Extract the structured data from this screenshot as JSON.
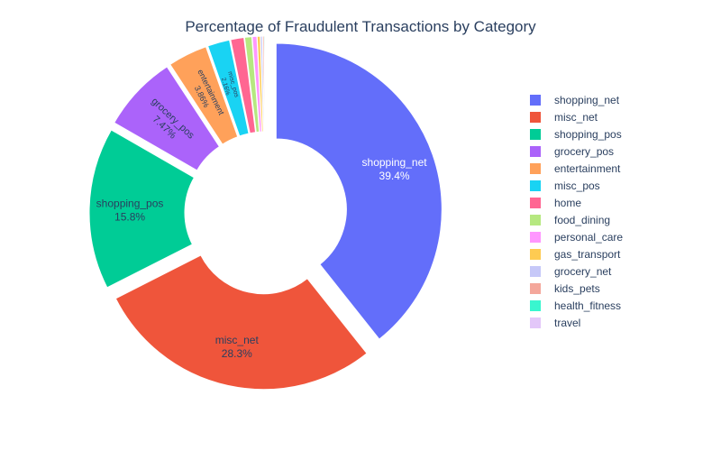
{
  "chart_data": {
    "type": "pie",
    "title": "Percentage of Fraudulent Transactions by Category",
    "hole": true,
    "categories": [
      "shopping_net",
      "misc_net",
      "shopping_pos",
      "grocery_pos",
      "entertainment",
      "misc_pos",
      "home",
      "food_dining",
      "personal_care",
      "gas_transport",
      "grocery_net",
      "kids_pets",
      "health_fitness",
      "travel"
    ],
    "values": [
      39.4,
      28.3,
      15.8,
      7.47,
      3.86,
      2.16,
      1.3,
      0.7,
      0.45,
      0.3,
      0.2,
      0.15,
      0.1,
      0.05
    ],
    "labels": [
      "39.4%",
      "28.3%",
      "15.8%",
      "7.47%",
      "3.86%",
      "2.16%",
      "",
      "",
      "",
      "",
      "",
      "",
      "",
      ""
    ],
    "colors": [
      "#636efa",
      "#ef553b",
      "#00cc96",
      "#ab63fa",
      "#ffa15a",
      "#19d3f3",
      "#ff6692",
      "#b6e880",
      "#ff97ff",
      "#fecb52",
      "#c6c8f8",
      "#f4a79b",
      "#39f6cf",
      "#e3c7f9"
    ],
    "legend_position": "right"
  }
}
